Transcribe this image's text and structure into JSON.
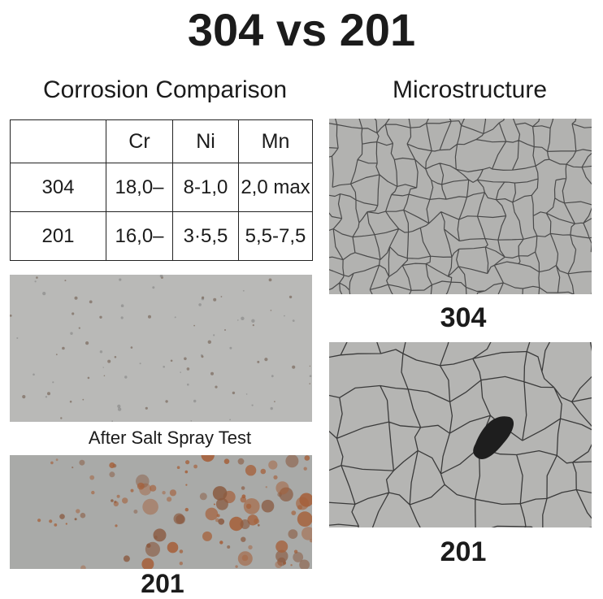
{
  "header": {
    "title": "304 vs 201"
  },
  "corrosion": {
    "heading": "Corrosion Comparison",
    "table": {
      "columns": [
        "Cr",
        "Ni",
        "Mn"
      ],
      "rows": [
        [
          "304",
          "18,0–",
          "8-1,0",
          "2,0 max"
        ],
        [
          "201",
          "16,0–",
          "3·5,5",
          "5,5-7,5"
        ]
      ]
    },
    "test_caption": "After Salt Spray Test",
    "sample_caption": "201"
  },
  "microstructure": {
    "heading": "Microstructure",
    "captions": [
      "304",
      "201"
    ]
  }
}
